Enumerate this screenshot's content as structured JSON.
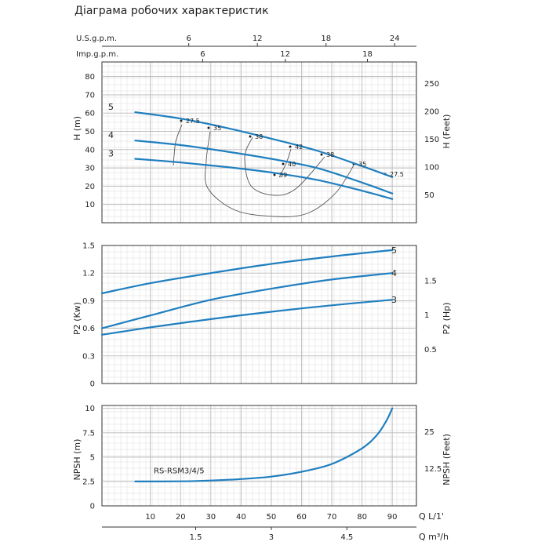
{
  "title": "Діаграма робочих характеристик",
  "colors": {
    "curve": "#1f7fbf",
    "efficiency": "#555555",
    "grid": "#b9b9b9",
    "panel_border": "#333333"
  },
  "chart_data": [
    {
      "type": "line",
      "panel": "head",
      "xlabel": "Q L/1'",
      "ylabel": "H (m)",
      "ylabel_right": "H (Feet)",
      "xlim": [
        -6,
        98
      ],
      "ylim": [
        0,
        88
      ],
      "yticks": [
        10,
        20,
        30,
        40,
        50,
        60,
        70,
        80
      ],
      "yticks_right": [
        50,
        100,
        150,
        200,
        250
      ],
      "top_axes": [
        {
          "label": "U.S.g.p.m.",
          "ticks": [
            "6",
            "12",
            "18",
            "24"
          ],
          "values_lpm": [
            22.7,
            45.4,
            68.1,
            90.8
          ]
        },
        {
          "label": "Imp.g.p.m.",
          "ticks": [
            "6",
            "12",
            "18"
          ],
          "values_lpm": [
            27.3,
            54.6,
            81.8
          ]
        }
      ],
      "series": [
        {
          "name": "5",
          "x": [
            5,
            20,
            35,
            50,
            65,
            80,
            90
          ],
          "y": [
            60.5,
            57,
            52,
            46,
            39.5,
            31,
            25
          ]
        },
        {
          "name": "4",
          "x": [
            5,
            20,
            35,
            50,
            65,
            80,
            90
          ],
          "y": [
            45,
            42.5,
            39,
            35,
            30,
            22,
            16
          ]
        },
        {
          "name": "3",
          "x": [
            5,
            20,
            35,
            50,
            65,
            80,
            90
          ],
          "y": [
            35,
            33,
            30.5,
            27.5,
            23.5,
            17.5,
            13
          ]
        }
      ],
      "efficiency_labels": [
        "27.5",
        "35",
        "38",
        "42",
        "40",
        "39",
        "38",
        "35",
        "27.5"
      ]
    },
    {
      "type": "line",
      "panel": "power",
      "ylabel": "P2 (Kw)",
      "ylabel_right": "P2 (Hp)",
      "xlim": [
        -6,
        98
      ],
      "ylim": [
        0,
        1.5
      ],
      "yticks": [
        0,
        0.3,
        0.6,
        0.9,
        1.2,
        1.5
      ],
      "yticks_right": [
        0.5,
        1,
        1.5
      ],
      "series": [
        {
          "name": "5",
          "x": [
            -6,
            10,
            30,
            50,
            70,
            90
          ],
          "y": [
            0.98,
            1.09,
            1.2,
            1.3,
            1.38,
            1.45
          ]
        },
        {
          "name": "4",
          "x": [
            -6,
            10,
            30,
            50,
            70,
            90
          ],
          "y": [
            0.6,
            0.74,
            0.91,
            1.03,
            1.13,
            1.2
          ]
        },
        {
          "name": "3",
          "x": [
            -6,
            10,
            30,
            50,
            70,
            90
          ],
          "y": [
            0.53,
            0.61,
            0.7,
            0.78,
            0.85,
            0.91
          ]
        }
      ]
    },
    {
      "type": "line",
      "panel": "npsh",
      "ylabel": "NPSH (m)",
      "ylabel_right": "NPSH (Feet)",
      "xlim": [
        -6,
        98
      ],
      "ylim": [
        0,
        10.3
      ],
      "yticks": [
        0,
        2.5,
        5,
        7.5,
        10
      ],
      "yticks_right": [
        12.5,
        25
      ],
      "x_ticks_lpm": [
        10,
        20,
        30,
        40,
        50,
        60,
        70,
        80,
        90
      ],
      "x_ticks_m3h": [
        "1.5",
        "3",
        "4.5"
      ],
      "x_ticks_m3h_values_lpm": [
        25,
        50,
        75
      ],
      "xlabel": "Q L/1'",
      "xlabel_m3h": "Q m³/h",
      "annotation": "RS-RSM3/4/5",
      "series": [
        {
          "x": [
            5,
            20,
            30,
            40,
            50,
            60,
            70,
            80,
            85,
            88,
            90
          ],
          "y": [
            2.5,
            2.52,
            2.6,
            2.75,
            3.0,
            3.5,
            4.3,
            5.9,
            7.3,
            8.7,
            10
          ]
        }
      ]
    }
  ]
}
